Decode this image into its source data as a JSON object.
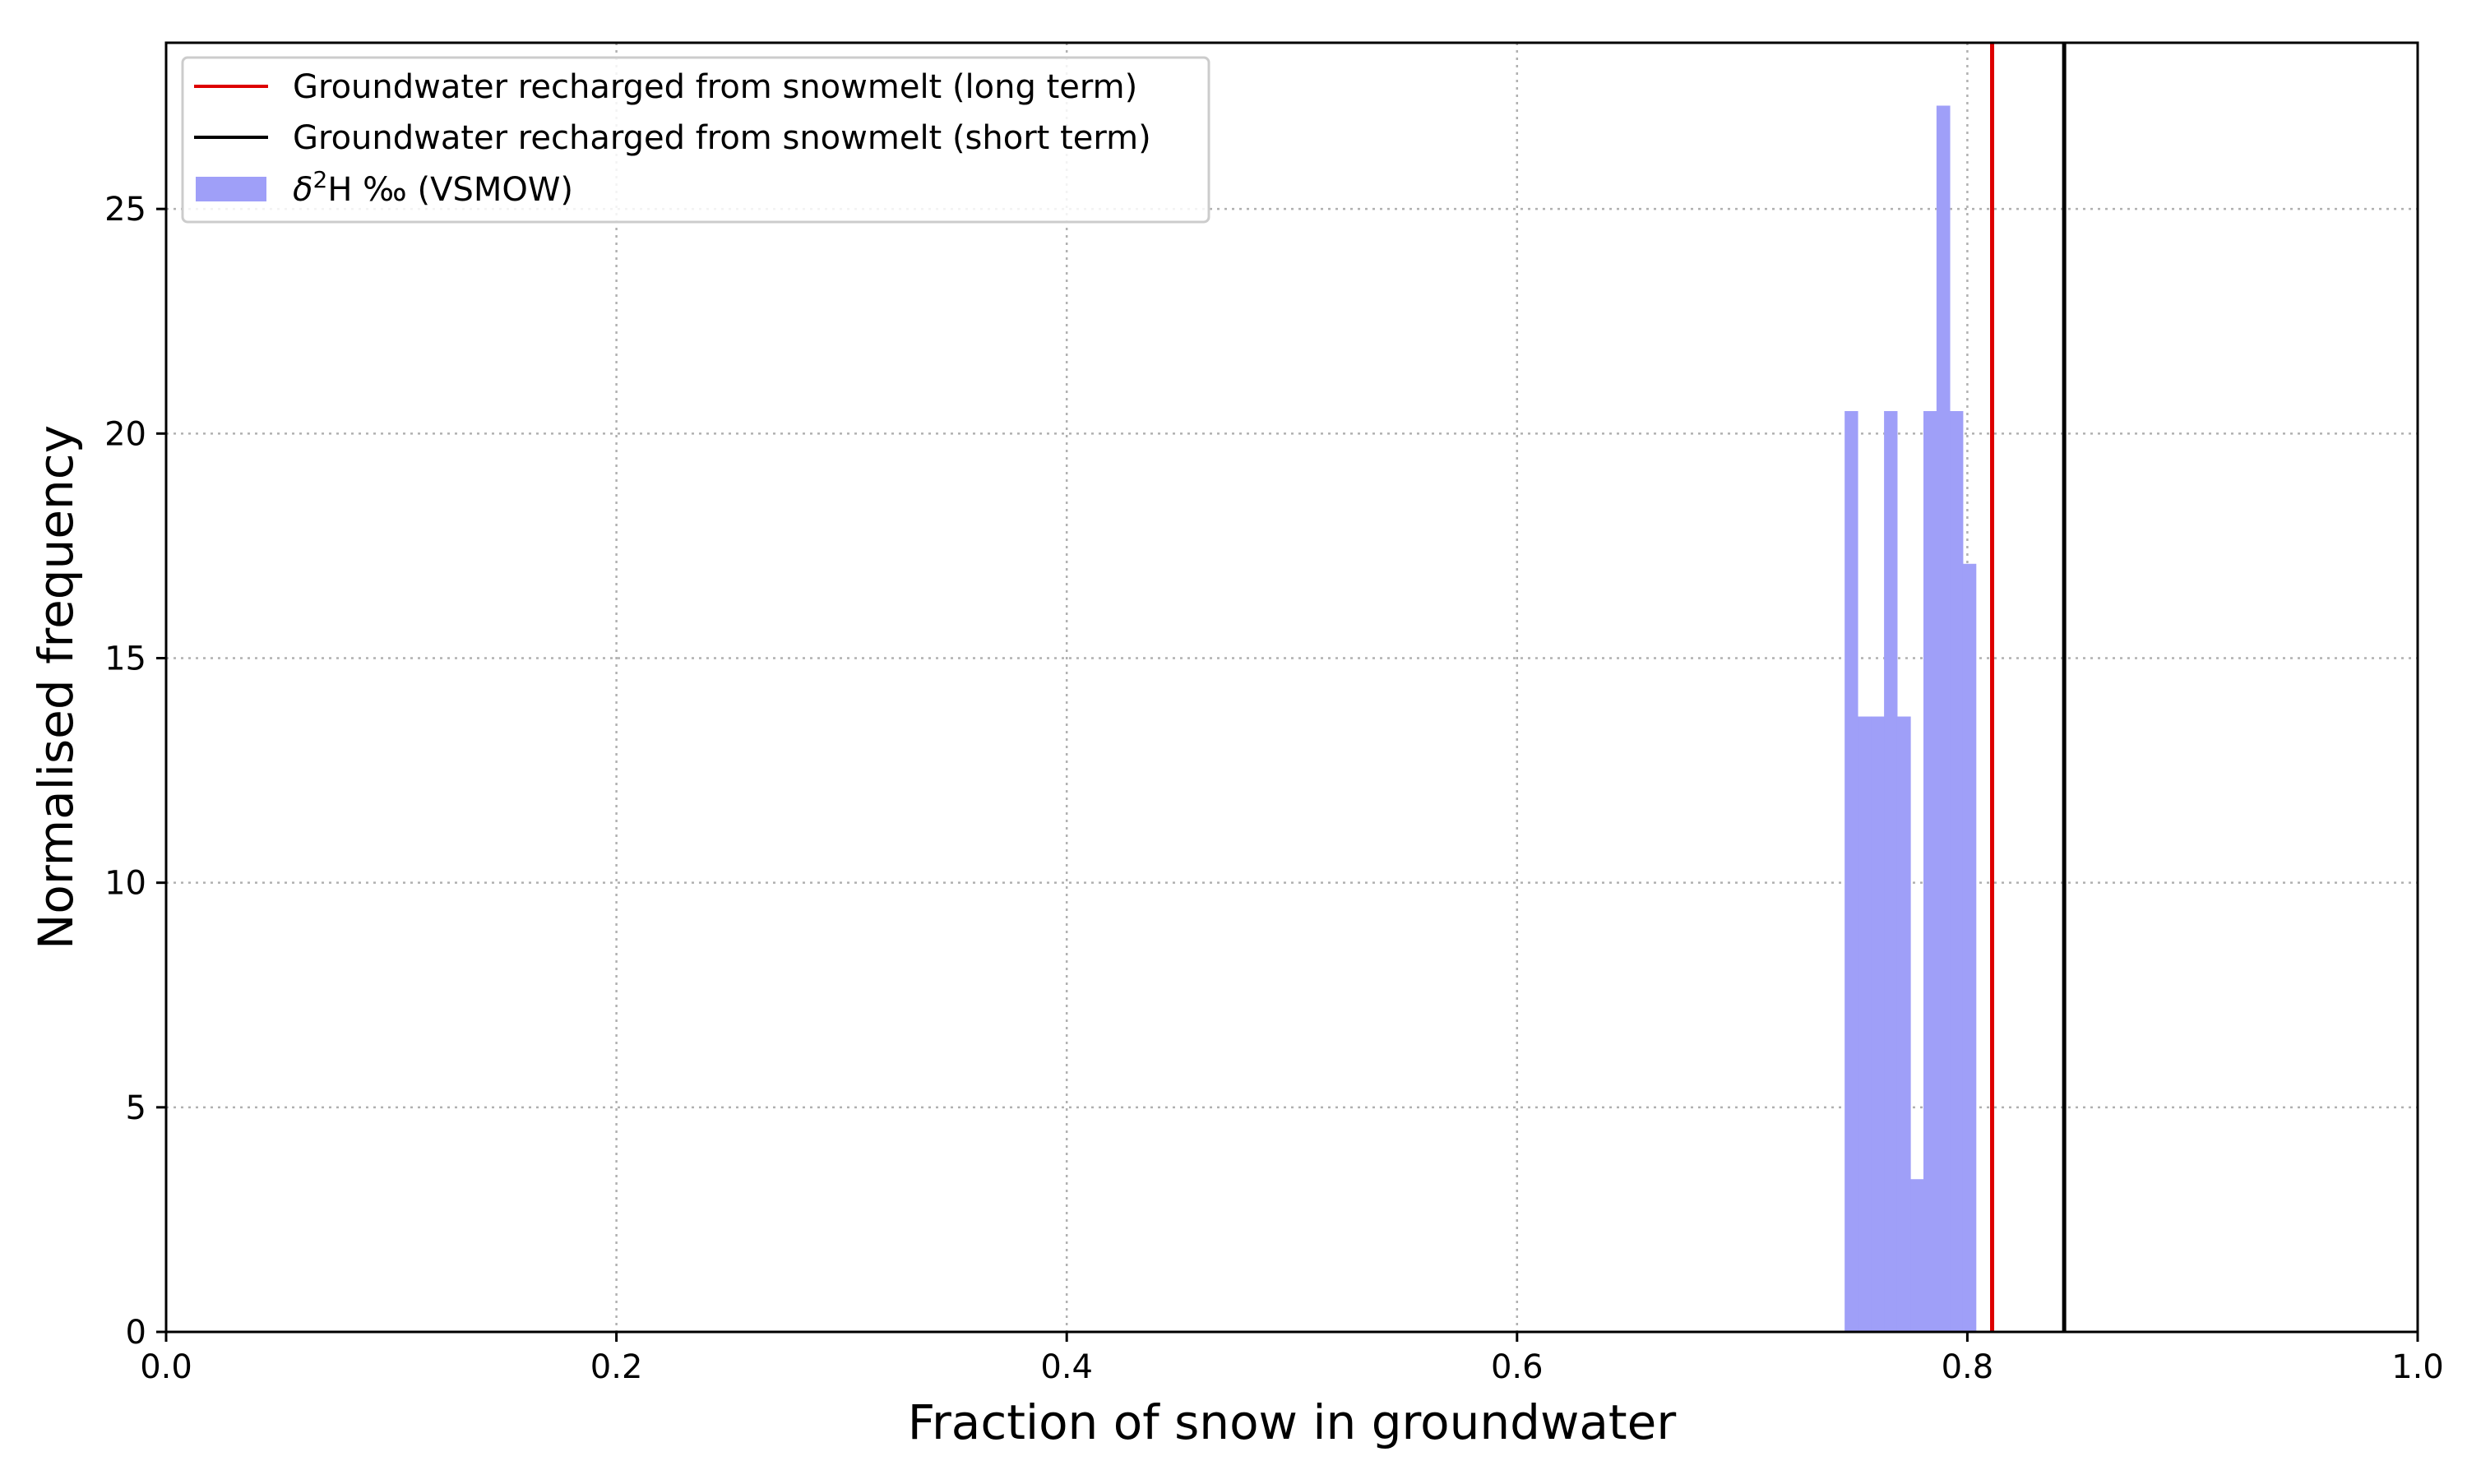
{
  "chart_data": {
    "type": "bar",
    "xlabel": "Fraction of snow in groundwater",
    "ylabel": "Normalised frequency",
    "xlim": [
      0.0,
      1.0
    ],
    "ylim": [
      0,
      28.7
    ],
    "xticks": [
      0.0,
      0.2,
      0.4,
      0.6,
      0.8,
      1.0
    ],
    "xtick_labels": [
      "0.0",
      "0.2",
      "0.4",
      "0.6",
      "0.8",
      "1.0"
    ],
    "yticks": [
      0,
      5,
      10,
      15,
      20,
      25
    ],
    "ytick_labels": [
      "0",
      "5",
      "10",
      "15",
      "20",
      "25"
    ],
    "grid": true,
    "legend_position": "top-left",
    "histogram": {
      "label_parts": {
        "prefix": "δ",
        "superscript": "2",
        "suffix": "H ‰ (VSMOW)"
      },
      "color": "#9f9ff8",
      "bin_edges": [
        0.7455,
        0.7513,
        0.7572,
        0.763,
        0.7688,
        0.7747,
        0.7805,
        0.7863,
        0.7922,
        0.798,
        0.8038
      ],
      "values": [
        20.5,
        13.7,
        13.7,
        20.5,
        13.7,
        3.4,
        20.5,
        27.3,
        20.5,
        17.1
      ]
    },
    "vlines": [
      {
        "label": "Groundwater recharged from snowmelt (long term)",
        "x": 0.811,
        "color": "#dd0000"
      },
      {
        "label": "Groundwater recharged from snowmelt (short term)",
        "x": 0.843,
        "color": "#000000"
      }
    ]
  }
}
